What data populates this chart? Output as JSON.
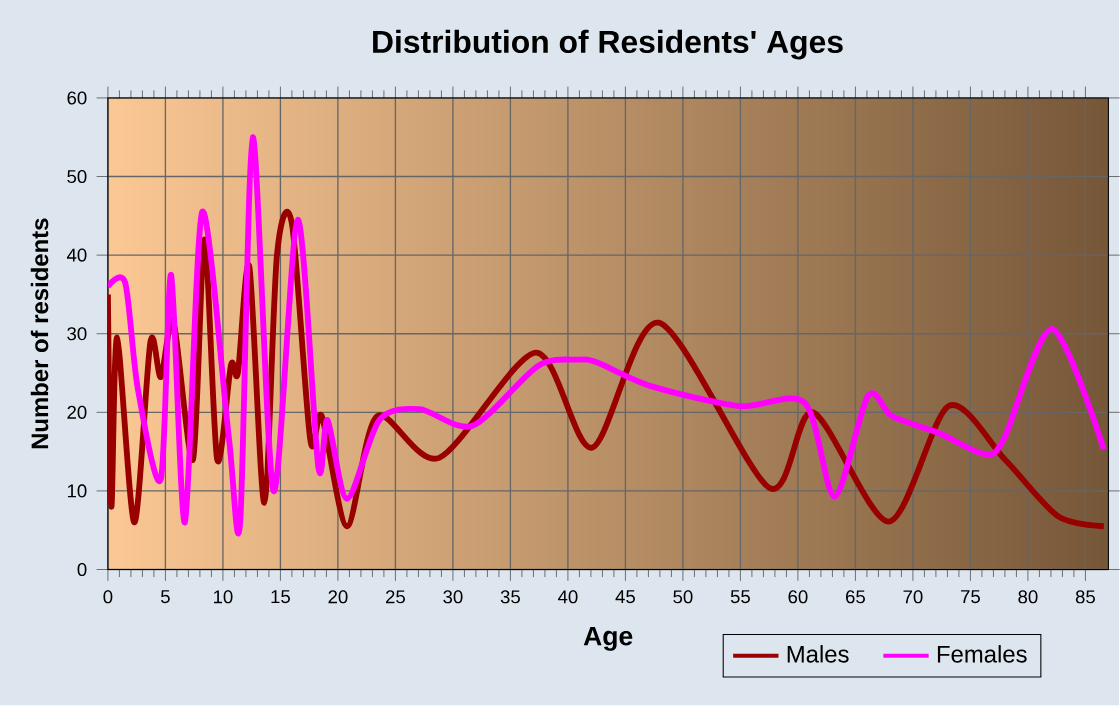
{
  "chart_data": {
    "type": "line",
    "title": "Distribution of Residents' Ages",
    "xlabel": "Age",
    "ylabel": "Number of residents",
    "xlim": [
      0,
      87
    ],
    "ylim": [
      0,
      60
    ],
    "xticks": [
      0,
      5,
      10,
      15,
      20,
      25,
      30,
      35,
      40,
      45,
      50,
      55,
      60,
      65,
      70,
      75,
      80,
      85
    ],
    "yticks": [
      0,
      10,
      20,
      30,
      40,
      50,
      60
    ],
    "grid": true,
    "legend": "bottom right",
    "marker": "none",
    "line_style": "solid",
    "series": [
      {
        "name": "Males",
        "color": "#990000",
        "x": [
          0,
          0.3,
          0.8,
          2.3,
          3.7,
          4.6,
          5.7,
          7.4,
          8.4,
          9.5,
          10.7,
          11.3,
          12.3,
          13.6,
          14.7,
          16,
          17.6,
          18.6,
          20.8,
          23.4,
          28.8,
          37.2,
          42.1,
          47.9,
          57.5,
          61.3,
          67.9,
          73.1,
          78,
          82.6,
          86.6
        ],
        "values": [
          35,
          8,
          29.5,
          6,
          29,
          24.5,
          31.5,
          14,
          42,
          14,
          26,
          25,
          38.5,
          8.5,
          40,
          44,
          16.5,
          19.5,
          5.5,
          19.5,
          14.2,
          27.6,
          15.5,
          31.4,
          10.4,
          20,
          6.1,
          20.8,
          14,
          6.8,
          5.5
        ]
      },
      {
        "name": "Females",
        "color": "#ff00ff",
        "x": [
          0,
          1.5,
          2.6,
          4.6,
          5.5,
          6.7,
          8.2,
          10.5,
          11.5,
          12.6,
          14.4,
          16.5,
          18.3,
          19.1,
          20.8,
          23.6,
          27.1,
          31.7,
          37.4,
          40.9,
          42.6,
          47.3,
          54.9,
          60.6,
          63.2,
          66.1,
          68.2,
          72.2,
          76.2,
          77.9,
          82.1,
          86.6
        ],
        "values": [
          36,
          36.5,
          23,
          11.5,
          37.5,
          6,
          45.5,
          17,
          6,
          55,
          10,
          44.5,
          13,
          19,
          9,
          19,
          20.4,
          18.3,
          25.9,
          26.7,
          26.3,
          23.3,
          20.8,
          21.2,
          9.3,
          22.1,
          19.5,
          17.4,
          14.7,
          16.6,
          30.6,
          15.3
        ]
      }
    ]
  }
}
